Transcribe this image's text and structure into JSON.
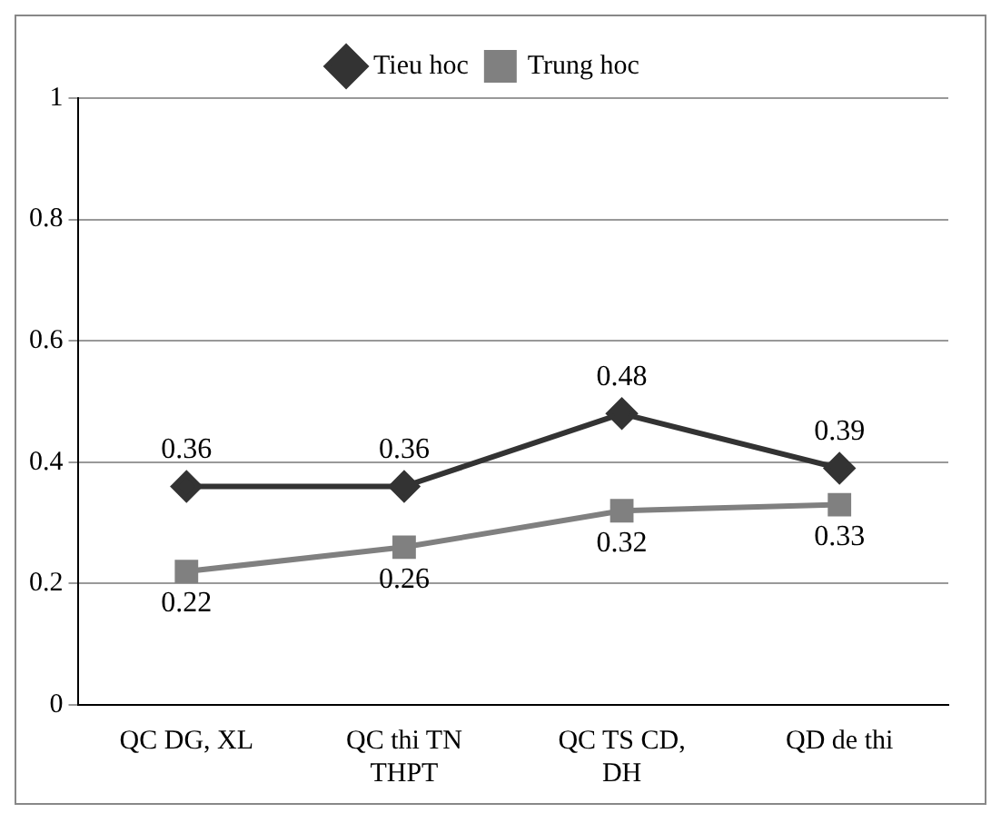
{
  "chart_data": {
    "type": "line",
    "categories": [
      "QC DG, XL",
      "QC thi TN THPT",
      "QC TS CD, DH",
      "QD de thi"
    ],
    "series": [
      {
        "name": "Tieu hoc",
        "color": "#333333",
        "marker": "diamond",
        "values": [
          0.36,
          0.36,
          0.48,
          0.39
        ]
      },
      {
        "name": "Trung hoc",
        "color": "#808080",
        "marker": "square",
        "values": [
          0.22,
          0.26,
          0.32,
          0.33
        ]
      }
    ],
    "ylim": [
      0,
      1
    ],
    "yticks": [
      0,
      0.2,
      0.4,
      0.6,
      0.8,
      1
    ],
    "grid": "y",
    "legend": "top",
    "data_labels": true
  }
}
